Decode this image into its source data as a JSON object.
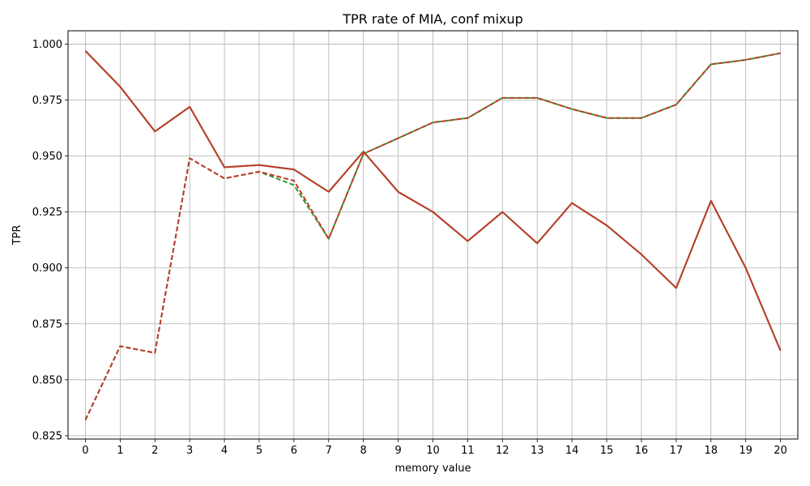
{
  "chart_data": {
    "type": "line",
    "title": "TPR rate of MIA, conf mixup",
    "xlabel": "memory value",
    "ylabel": "TPR",
    "x": [
      0,
      1,
      2,
      3,
      4,
      5,
      6,
      7,
      8,
      9,
      10,
      11,
      12,
      13,
      14,
      15,
      16,
      17,
      18,
      19,
      20
    ],
    "ylim": [
      0.8235,
      1.006
    ],
    "yticks": [
      0.825,
      0.85,
      0.875,
      0.9,
      0.925,
      0.95,
      0.975,
      1.0
    ],
    "ytick_labels": [
      "0.825",
      "0.850",
      "0.875",
      "0.900",
      "0.925",
      "0.950",
      "0.975",
      "1.000"
    ],
    "grid": true,
    "series": [
      {
        "style": "dashed",
        "color": "#2ca02c",
        "values": [
          0.832,
          0.865,
          0.862,
          0.949,
          0.94,
          0.943,
          0.937,
          0.913,
          0.951,
          0.958,
          0.965,
          0.967,
          0.976,
          0.976,
          0.971,
          0.967,
          0.967,
          0.973,
          0.991,
          0.993,
          0.996
        ]
      },
      {
        "style": "dashed",
        "color": "#c0392b",
        "values": [
          0.832,
          0.865,
          0.862,
          0.949,
          0.94,
          0.943,
          0.939,
          0.913,
          0.951,
          0.958,
          0.965,
          0.967,
          0.976,
          0.976,
          0.971,
          0.967,
          0.967,
          0.973,
          0.991,
          0.993,
          0.996
        ]
      },
      {
        "style": "solid",
        "color": "#2ca02c",
        "values": [
          0.997,
          0.981,
          0.961,
          0.972,
          0.945,
          0.946,
          0.944,
          0.934,
          0.952,
          0.934,
          0.925,
          0.912,
          0.925,
          0.911,
          0.929,
          0.919,
          0.906,
          0.891,
          0.93,
          0.9,
          0.863
        ]
      },
      {
        "style": "solid",
        "color": "#c0392b",
        "values": [
          0.997,
          0.981,
          0.961,
          0.972,
          0.945,
          0.946,
          0.944,
          0.934,
          0.952,
          0.934,
          0.925,
          0.912,
          0.925,
          0.911,
          0.929,
          0.919,
          0.906,
          0.891,
          0.93,
          0.9,
          0.863
        ]
      }
    ]
  }
}
